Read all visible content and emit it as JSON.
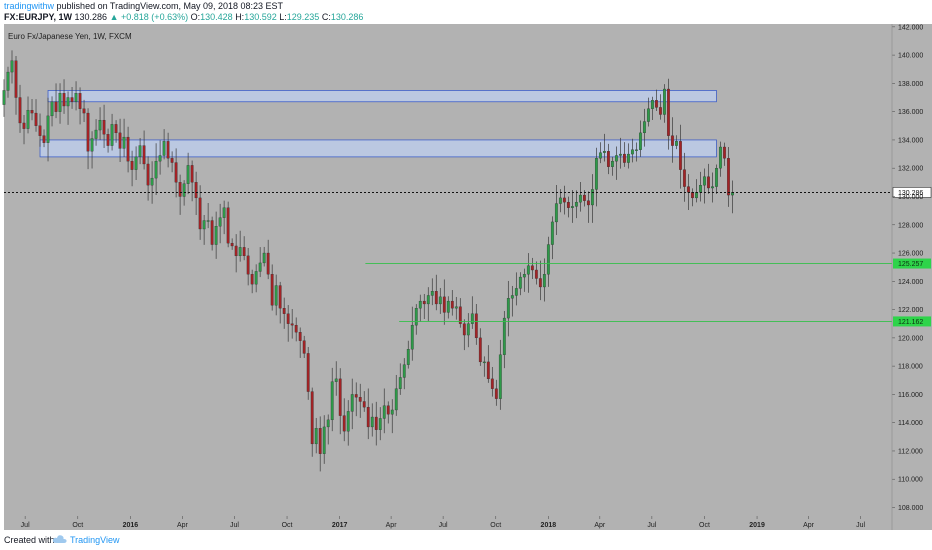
{
  "header": {
    "author": "tradingwithw",
    "published": "published on TradingView.com, May 09, 2018 08:23 EST",
    "symbol": "FX:EURJPY, 1W",
    "last": "130.286",
    "change": "+0.818 (+0.63%)",
    "o_label": "O:",
    "o_value": "130.428",
    "h_label": "H:",
    "h_value": "130.592",
    "l_label": "L:",
    "l_value": "129.235",
    "c_label": "C:",
    "c_value": "130.286"
  },
  "chart_data": {
    "type": "candlestick",
    "title": "Euro Fx/Japanese Yen, 1W, FXCM",
    "ylim": [
      107.4,
      142.2
    ],
    "y_ticks": [
      108,
      110,
      112,
      114,
      116,
      118,
      120,
      122,
      124,
      126,
      128,
      130,
      132,
      134,
      136,
      138,
      140,
      142
    ],
    "y_tick_labels": [
      "108.000",
      "110.000",
      "112.000",
      "114.000",
      "116.000",
      "118.000",
      "120.000",
      "122.000",
      "124.000",
      "126.000",
      "128.000",
      "130.000",
      "132.000",
      "134.000",
      "136.000",
      "138.000",
      "140.000",
      "142.000"
    ],
    "x_ticks": [
      {
        "label": "Jul",
        "date": "2015-07-01"
      },
      {
        "label": "Oct",
        "date": "2015-10-01"
      },
      {
        "label": "2016",
        "date": "2016-01-01"
      },
      {
        "label": "Apr",
        "date": "2016-04-01"
      },
      {
        "label": "Jul",
        "date": "2016-07-01"
      },
      {
        "label": "Oct",
        "date": "2016-10-01"
      },
      {
        "label": "2017",
        "date": "2017-01-01"
      },
      {
        "label": "Apr",
        "date": "2017-04-01"
      },
      {
        "label": "Jul",
        "date": "2017-07-01"
      },
      {
        "label": "Oct",
        "date": "2017-10-01"
      },
      {
        "label": "2018",
        "date": "2018-01-01"
      },
      {
        "label": "Apr",
        "date": "2018-04-01"
      },
      {
        "label": "Jul",
        "date": "2018-07-01"
      },
      {
        "label": "Oct",
        "date": "2018-10-01"
      },
      {
        "label": "2019",
        "date": "2019-01-01"
      },
      {
        "label": "Apr",
        "date": "2019-04-01"
      },
      {
        "label": "Jul",
        "date": "2019-07-01"
      }
    ],
    "x_range": [
      "2015-05-25",
      "2019-08-25"
    ],
    "closes": [
      137.5,
      138.8,
      139.6,
      137.0,
      135.2,
      134.8,
      136.1,
      135.9,
      135.0,
      134.3,
      133.8,
      135.7,
      136.7,
      136.0,
      137.3,
      136.4,
      137.0,
      136.7,
      137.3,
      136.2,
      135.9,
      133.2,
      134.1,
      134.7,
      135.4,
      134.4,
      133.6,
      135.1,
      134.5,
      133.4,
      134.2,
      132.5,
      131.9,
      132.8,
      133.6,
      132.3,
      130.8,
      131.3,
      132.5,
      132.9,
      133.9,
      132.7,
      132.4,
      131.0,
      130.0,
      130.9,
      132.2,
      131.0,
      129.9,
      127.7,
      128.3,
      128.3,
      126.6,
      127.9,
      128.5,
      129.2,
      126.7,
      126.5,
      125.8,
      126.4,
      125.8,
      124.5,
      123.8,
      124.7,
      125.3,
      126.0,
      124.5,
      122.3,
      123.7,
      122.1,
      121.7,
      121.0,
      120.9,
      120.4,
      119.8,
      118.9,
      116.2,
      112.5,
      113.6,
      111.8,
      113.7,
      114.2,
      116.9,
      117.1,
      114.5,
      113.4,
      114.8,
      116.0,
      115.8,
      115.5,
      115.1,
      113.7,
      114.4,
      113.5,
      114.3,
      115.2,
      114.6,
      114.9,
      116.4,
      117.2,
      118.1,
      119.2,
      120.9,
      122.1,
      122.6,
      122.4,
      123.0,
      123.3,
      122.4,
      122.9,
      121.8,
      122.6,
      122.1,
      122.2,
      121.0,
      120.2,
      121.0,
      121.7,
      120.0,
      118.3,
      118.3,
      117.1,
      116.4,
      115.7,
      118.8,
      121.4,
      122.8,
      123.0,
      123.5,
      124.3,
      124.5,
      125.1,
      124.8,
      124.2,
      123.6,
      124.5,
      126.6,
      128.2,
      129.5,
      129.9,
      129.6,
      129.2,
      129.3,
      129.6,
      130.1,
      129.7,
      129.4,
      130.5,
      132.7,
      133.1,
      133.2,
      132.1,
      132.5,
      132.9,
      133.0,
      132.4,
      133.0,
      133.3,
      133.3,
      134.5,
      135.3,
      136.2,
      136.8,
      136.3,
      135.8,
      137.6,
      134.3,
      133.6,
      133.9,
      131.9,
      130.7,
      130.3,
      129.9,
      130.3,
      130.8,
      131.4,
      130.6,
      130.7,
      132.0,
      133.5,
      132.7,
      130.1,
      130.3
    ],
    "zones": [
      {
        "name": "upper-resistance-zone",
        "top": 137.5,
        "bottom": 136.7,
        "start": "2015-08-10",
        "end": "2018-10-22"
      },
      {
        "name": "lower-resistance-zone",
        "top": 134.0,
        "bottom": 132.8,
        "start": "2015-07-27",
        "end": "2018-10-22"
      }
    ],
    "hlines": [
      {
        "name": "support-line-125",
        "price": 125.257,
        "label": "125.257",
        "start": "2017-02-15"
      },
      {
        "name": "support-line-121",
        "price": 121.162,
        "label": "121.162",
        "start": "2017-04-15"
      }
    ],
    "last_price": {
      "value": 130.286,
      "label": "130.286"
    },
    "colors": {
      "background": "#b2b2b2",
      "up": "#2e9a49",
      "down": "#a32326",
      "wick": "#3a3a3a",
      "zone_fill": "#bccbe9",
      "zone_stroke": "#3f5fc6",
      "support": "#35c04a",
      "last_price": "#111111",
      "text": "#222222"
    }
  },
  "footer": {
    "created": "Created with",
    "brand": "TradingView"
  }
}
